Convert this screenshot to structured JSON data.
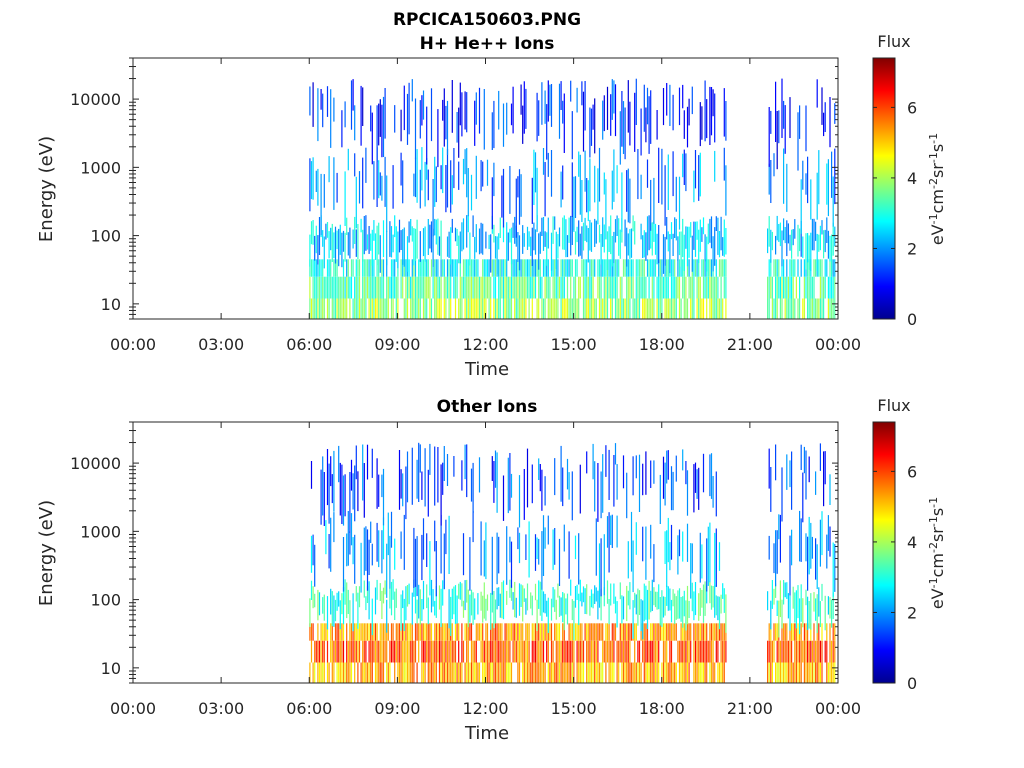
{
  "figure_title": "RPCICA150603.PNG",
  "colormap": [
    "#00008f",
    "#0000ff",
    "#0080ff",
    "#00ffff",
    "#80ff80",
    "#ffff00",
    "#ff8000",
    "#ff0000",
    "#800000"
  ],
  "chart_data": [
    {
      "type": "heatmap",
      "title": "H+ He++ Ions",
      "xlabel": "Time",
      "ylabel": "Energy (eV)",
      "yscale": "log",
      "ylim": [
        6,
        40000
      ],
      "xlim": [
        "00:00",
        "24:00"
      ],
      "xticks": [
        "00:00",
        "03:00",
        "06:00",
        "09:00",
        "12:00",
        "15:00",
        "18:00",
        "21:00",
        "00:00"
      ],
      "yticks": [
        10,
        100,
        1000,
        10000
      ],
      "ytick_labels": [
        "10",
        "100",
        "1000",
        "10000"
      ],
      "colorbar": {
        "title": "Flux",
        "unit": "eV-1cm-2sr-1s-1",
        "range": [
          0,
          7.4
        ],
        "ticks": [
          "0",
          "2",
          "4",
          "6"
        ]
      },
      "data_intervals": [
        [
          "06:00",
          "20:10"
        ],
        [
          "21:35",
          "23:55"
        ]
      ],
      "energy_bands": [
        {
          "band": [
            6,
            12
          ],
          "flux": 3.9
        },
        {
          "band": [
            12,
            25
          ],
          "flux": 3.4
        },
        {
          "band": [
            25,
            45
          ],
          "flux": 2.9
        },
        {
          "band": [
            45,
            200
          ],
          "flux": 2.4
        },
        {
          "band": [
            200,
            2000
          ],
          "flux": 1.9
        },
        {
          "band": [
            2000,
            20000
          ],
          "flux": 1.2
        }
      ],
      "grid": false
    },
    {
      "type": "heatmap",
      "title": "Other Ions",
      "xlabel": "Time",
      "ylabel": "Energy (eV)",
      "yscale": "log",
      "ylim": [
        6,
        40000
      ],
      "xlim": [
        "00:00",
        "24:00"
      ],
      "xticks": [
        "00:00",
        "03:00",
        "06:00",
        "09:00",
        "12:00",
        "15:00",
        "18:00",
        "21:00",
        "00:00"
      ],
      "yticks": [
        10,
        100,
        1000,
        10000
      ],
      "ytick_labels": [
        "10",
        "100",
        "1000",
        "10000"
      ],
      "colorbar": {
        "title": "Flux",
        "unit": "eV-1cm-2sr-1s-1",
        "range": [
          0,
          7.4
        ],
        "ticks": [
          "0",
          "2",
          "4",
          "6"
        ]
      },
      "data_intervals": [
        [
          "06:00",
          "20:10"
        ],
        [
          "21:35",
          "23:55"
        ]
      ],
      "energy_bands": [
        {
          "band": [
            6,
            12
          ],
          "flux": 5.2
        },
        {
          "band": [
            12,
            25
          ],
          "flux": 5.8
        },
        {
          "band": [
            25,
            45
          ],
          "flux": 5.4
        },
        {
          "band": [
            45,
            200
          ],
          "flux": 3.1
        },
        {
          "band": [
            200,
            2000
          ],
          "flux": 2.0
        },
        {
          "band": [
            2000,
            20000
          ],
          "flux": 1.5
        }
      ],
      "grid": false
    }
  ]
}
